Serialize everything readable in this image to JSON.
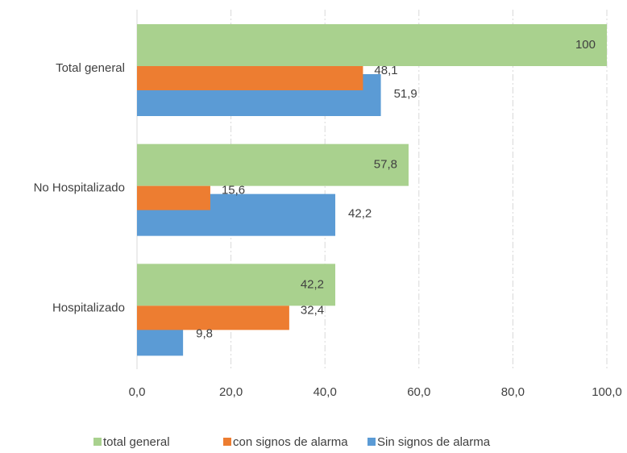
{
  "chart_data": {
    "type": "bar",
    "orientation": "horizontal",
    "categories": [
      "Total general",
      "No Hospitalizado",
      "Hospitalizado"
    ],
    "series": [
      {
        "name": "total general",
        "color": "#a9d18e",
        "values": [
          100,
          57.8,
          42.2
        ],
        "value_labels": [
          "100",
          "57,8",
          "42,2"
        ]
      },
      {
        "name": "con signos de alarma",
        "color": "#ed7d31",
        "values": [
          48.1,
          15.6,
          32.4
        ],
        "value_labels": [
          "48,1",
          "15,6",
          "32,4"
        ]
      },
      {
        "name": "Sin signos de alarma",
        "color": "#5b9bd5",
        "values": [
          51.9,
          42.2,
          9.8
        ],
        "value_labels": [
          "51,9",
          "42,2",
          "9,8"
        ]
      }
    ],
    "xlim": [
      0,
      100
    ],
    "xticks": [
      {
        "value": 0,
        "label": "0,0"
      },
      {
        "value": 20,
        "label": "20,0"
      },
      {
        "value": 40,
        "label": "40,0"
      },
      {
        "value": 60,
        "label": "60,0"
      },
      {
        "value": 80,
        "label": "80,0"
      },
      {
        "value": 100,
        "label": "100,0"
      }
    ],
    "grid": true,
    "legend": "bottom"
  }
}
